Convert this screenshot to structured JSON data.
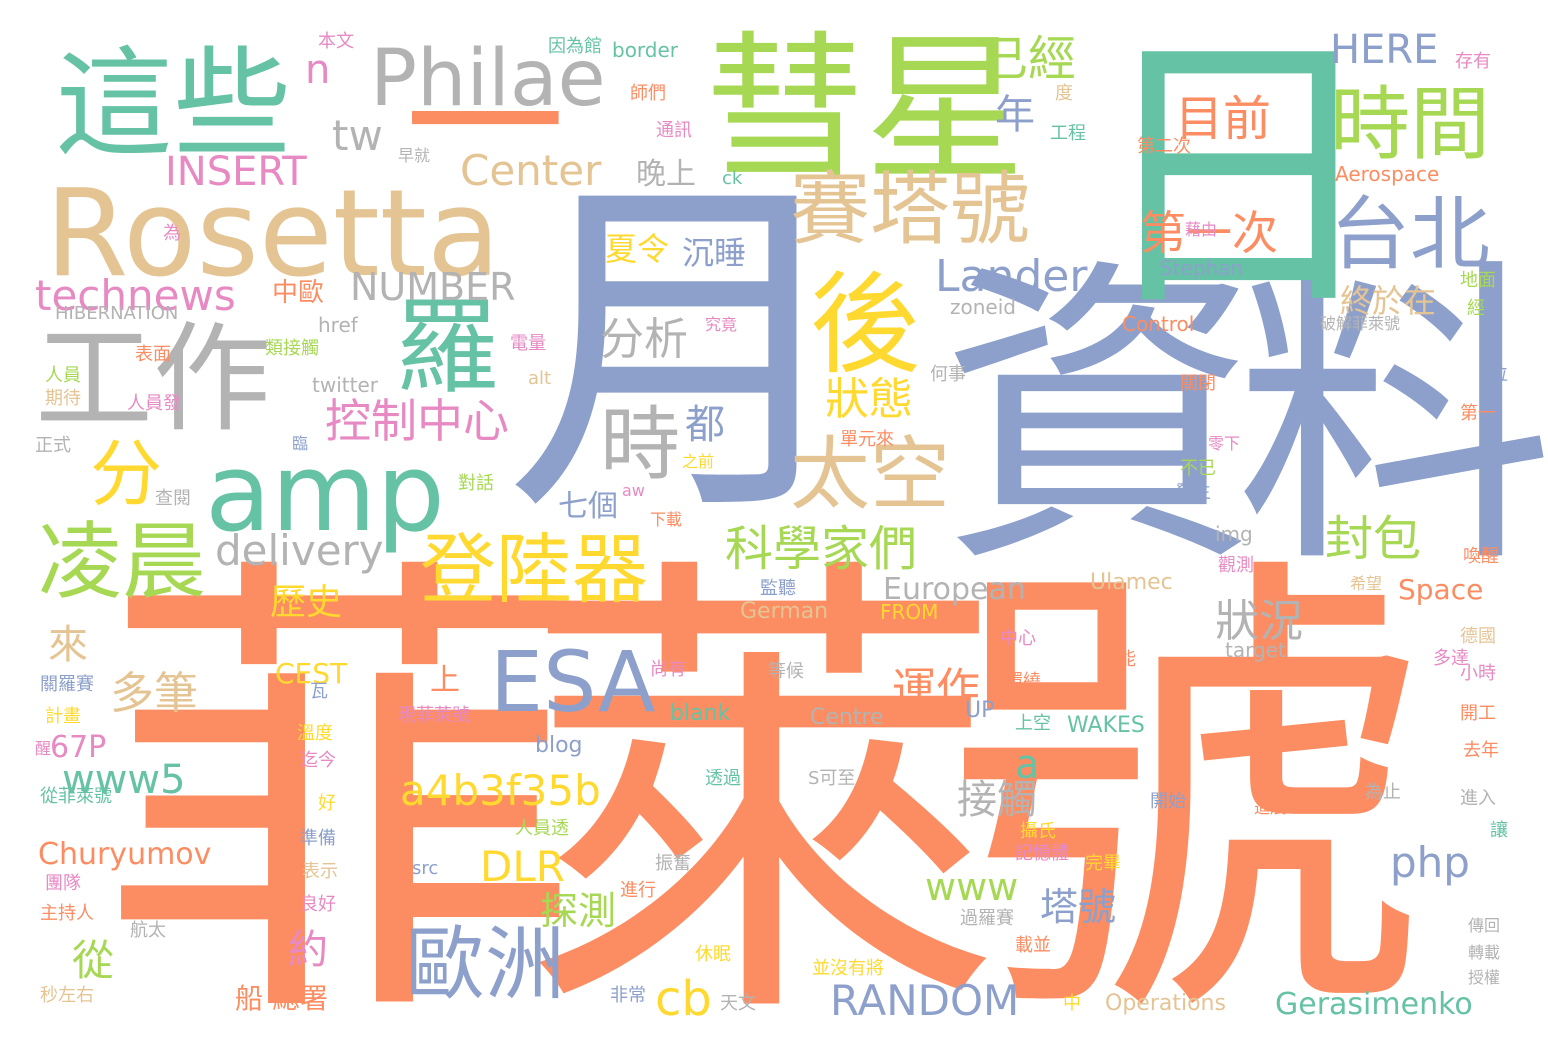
{
  "colors": {
    "orange": "#fc8d62",
    "blue": "#8da0cb",
    "teal": "#66c2a5",
    "green": "#a6d854",
    "yellow": "#ffd92f",
    "tan": "#e5c494",
    "pink": "#e78ac3",
    "gray": "#b3b3b3"
  },
  "words": [
    {
      "id": "w1",
      "text": "菲萊號",
      "color": "orange"
    },
    {
      "id": "w2",
      "text": "資料",
      "color": "blue"
    },
    {
      "id": "w3",
      "text": "月",
      "color": "blue"
    },
    {
      "id": "w4",
      "text": "日",
      "color": "teal"
    },
    {
      "id": "w5",
      "text": "彗星",
      "color": "green"
    },
    {
      "id": "w6",
      "text": "Rosetta",
      "color": "tan"
    },
    {
      "id": "w7",
      "text": "這些",
      "color": "teal"
    },
    {
      "id": "w8",
      "text": "Philae",
      "color": "gray"
    },
    {
      "id": "w9",
      "text": "一",
      "color": "orange"
    },
    {
      "id": "w10",
      "text": "工作",
      "color": "gray"
    },
    {
      "id": "w11",
      "text": "amp",
      "color": "teal"
    },
    {
      "id": "w12",
      "text": "時間",
      "color": "green"
    },
    {
      "id": "w13",
      "text": "賽塔號",
      "color": "tan"
    },
    {
      "id": "w14",
      "text": "台北",
      "color": "blue"
    },
    {
      "id": "w15",
      "text": "後",
      "color": "yellow"
    },
    {
      "id": "w16",
      "text": "羅",
      "color": "teal"
    },
    {
      "id": "w17",
      "text": "登陸器",
      "color": "yellow"
    },
    {
      "id": "w18",
      "text": "ESA",
      "color": "blue"
    },
    {
      "id": "w19",
      "text": "歐洲",
      "color": "blue"
    },
    {
      "id": "w20",
      "text": "凌晨",
      "color": "green"
    },
    {
      "id": "w21",
      "text": "太空",
      "color": "tan"
    },
    {
      "id": "w22",
      "text": "分",
      "color": "yellow"
    },
    {
      "id": "w23",
      "text": "時",
      "color": "gray"
    },
    {
      "id": "w24",
      "text": "已經",
      "color": "green"
    },
    {
      "id": "w25",
      "text": "目前",
      "color": "orange"
    },
    {
      "id": "w26",
      "text": "第一次",
      "color": "orange"
    },
    {
      "id": "w27",
      "text": "Lander",
      "color": "blue"
    },
    {
      "id": "w28",
      "text": "控制中心",
      "color": "pink"
    },
    {
      "id": "w29",
      "text": "科學家們",
      "color": "green"
    },
    {
      "id": "w30",
      "text": "a4b3f35b",
      "color": "yellow"
    },
    {
      "id": "w31",
      "text": "Center",
      "color": "tan"
    },
    {
      "id": "w32",
      "text": "INSERT",
      "color": "pink"
    },
    {
      "id": "w33",
      "text": "technews",
      "color": "pink"
    },
    {
      "id": "w34",
      "text": "NUMBER",
      "color": "gray"
    },
    {
      "id": "w35",
      "text": "delivery",
      "color": "gray"
    },
    {
      "id": "w36",
      "text": "RANDOM",
      "color": "blue"
    },
    {
      "id": "w37",
      "text": "www5",
      "color": "teal"
    },
    {
      "id": "w38",
      "text": "Churyumov",
      "color": "orange"
    },
    {
      "id": "w39",
      "text": "Gerasimenko",
      "color": "teal"
    },
    {
      "id": "w40",
      "text": "DLR",
      "color": "yellow"
    },
    {
      "id": "w41",
      "text": "php",
      "color": "blue"
    },
    {
      "id": "w42",
      "text": "www",
      "color": "green"
    },
    {
      "id": "w43",
      "text": "cb",
      "color": "yellow"
    },
    {
      "id": "w44",
      "text": "HERE",
      "color": "blue"
    },
    {
      "id": "w45",
      "text": "tw",
      "color": "gray"
    },
    {
      "id": "w46",
      "text": "n",
      "color": "pink"
    },
    {
      "id": "w47",
      "text": "分析",
      "color": "gray"
    },
    {
      "id": "w48",
      "text": "狀態",
      "color": "yellow"
    },
    {
      "id": "w49",
      "text": "封包",
      "color": "green"
    },
    {
      "id": "w50",
      "text": "終於在",
      "color": "tan"
    },
    {
      "id": "w51",
      "text": "多筆",
      "color": "tan"
    },
    {
      "id": "w52",
      "text": "運作",
      "color": "orange"
    },
    {
      "id": "w53",
      "text": "狀況",
      "color": "gray"
    },
    {
      "id": "w54",
      "text": "接觸",
      "color": "gray"
    },
    {
      "id": "w55",
      "text": "塔號",
      "color": "blue"
    },
    {
      "id": "w56",
      "text": "探測",
      "color": "green"
    },
    {
      "id": "w57",
      "text": "歷史",
      "color": "yellow"
    },
    {
      "id": "w58",
      "text": "European",
      "color": "gray"
    },
    {
      "id": "w59",
      "text": "Space",
      "color": "orange"
    },
    {
      "id": "w60",
      "text": "年",
      "color": "blue"
    },
    {
      "id": "w61",
      "text": "都",
      "color": "blue"
    },
    {
      "id": "w62",
      "text": "來",
      "color": "tan"
    },
    {
      "id": "w63",
      "text": "從",
      "color": "green"
    },
    {
      "id": "w64",
      "text": "約",
      "color": "pink"
    },
    {
      "id": "w65",
      "text": "a",
      "color": "teal"
    },
    {
      "id": "w66",
      "text": "夏令",
      "color": "yellow"
    },
    {
      "id": "w67",
      "text": "沉睡",
      "color": "blue"
    },
    {
      "id": "w68",
      "text": "晚上",
      "color": "gray"
    },
    {
      "id": "w69",
      "text": "七個",
      "color": "blue"
    },
    {
      "id": "w70",
      "text": "中歐",
      "color": "orange"
    },
    {
      "id": "w71",
      "text": "上",
      "color": "orange"
    },
    {
      "id": "w72",
      "text": "67P",
      "color": "pink"
    },
    {
      "id": "w73",
      "text": "CEST",
      "color": "yellow"
    },
    {
      "id": "w74",
      "text": "船",
      "color": "orange"
    },
    {
      "id": "w75",
      "text": "總署",
      "color": "orange"
    },
    {
      "id": "w76",
      "text": "blog",
      "color": "blue"
    },
    {
      "id": "w77",
      "text": "blank",
      "color": "teal"
    },
    {
      "id": "w78",
      "text": "Centre",
      "color": "gray"
    },
    {
      "id": "w79",
      "text": "UP",
      "color": "blue"
    },
    {
      "id": "w80",
      "text": "WAKES",
      "color": "teal"
    },
    {
      "id": "w81",
      "text": "Operations",
      "color": "tan"
    },
    {
      "id": "w82",
      "text": "German",
      "color": "tan"
    },
    {
      "id": "w83",
      "text": "FROM",
      "color": "yellow"
    },
    {
      "id": "w84",
      "text": "Ulamec",
      "color": "tan"
    },
    {
      "id": "w85",
      "text": "img",
      "color": "gray"
    },
    {
      "id": "w86",
      "text": "target",
      "color": "gray"
    },
    {
      "id": "w87",
      "text": "zoneid",
      "color": "gray"
    },
    {
      "id": "w88",
      "text": "Control",
      "color": "orange"
    },
    {
      "id": "w89",
      "text": "Stephan",
      "color": "blue"
    },
    {
      "id": "w90",
      "text": "Aerospace",
      "color": "orange"
    },
    {
      "id": "w91",
      "text": "border",
      "color": "teal"
    },
    {
      "id": "w92",
      "text": "href",
      "color": "gray"
    },
    {
      "id": "w93",
      "text": "twitter",
      "color": "gray"
    },
    {
      "id": "w94",
      "text": "alt",
      "color": "tan"
    },
    {
      "id": "w95",
      "text": "HIBERNATION",
      "color": "gray"
    },
    {
      "id": "w96",
      "text": "src",
      "color": "blue"
    },
    {
      "id": "w97",
      "text": "ck",
      "color": "teal"
    },
    {
      "id": "w98",
      "text": "aw",
      "color": "pink"
    },
    {
      "id": "w99",
      "text": "本文",
      "color": "pink"
    },
    {
      "id": "w100",
      "text": "因為館",
      "color": "teal"
    },
    {
      "id": "w101",
      "text": "師們",
      "color": "orange"
    },
    {
      "id": "w102",
      "text": "度",
      "color": "tan"
    },
    {
      "id": "w103",
      "text": "工程",
      "color": "teal"
    },
    {
      "id": "w104",
      "text": "通訊",
      "color": "pink"
    },
    {
      "id": "w105",
      "text": "早就",
      "color": "gray"
    },
    {
      "id": "w106",
      "text": "第二次",
      "color": "orange"
    },
    {
      "id": "w107",
      "text": "存有",
      "color": "pink"
    },
    {
      "id": "w108",
      "text": "為",
      "color": "pink"
    },
    {
      "id": "w109",
      "text": "藉由",
      "color": "pink"
    },
    {
      "id": "w110",
      "text": "地面",
      "color": "green"
    },
    {
      "id": "w111",
      "text": "經",
      "color": "green"
    },
    {
      "id": "w112",
      "text": "破解菲萊號",
      "color": "gray"
    },
    {
      "id": "w113",
      "text": "表面",
      "color": "orange"
    },
    {
      "id": "w114",
      "text": "類接觸",
      "color": "green"
    },
    {
      "id": "w115",
      "text": "電量",
      "color": "pink"
    },
    {
      "id": "w116",
      "text": "究竟",
      "color": "pink"
    },
    {
      "id": "w117",
      "text": "何事",
      "color": "gray"
    },
    {
      "id": "w118",
      "text": "關閉",
      "color": "orange"
    },
    {
      "id": "w119",
      "text": "位",
      "color": "blue"
    },
    {
      "id": "w120",
      "text": "人員",
      "color": "green"
    },
    {
      "id": "w121",
      "text": "期待",
      "color": "tan"
    },
    {
      "id": "w122",
      "text": "人員發",
      "color": "pink"
    },
    {
      "id": "w123",
      "text": "正式",
      "color": "gray"
    },
    {
      "id": "w124",
      "text": "臨",
      "color": "blue"
    },
    {
      "id": "w125",
      "text": "單元來",
      "color": "orange"
    },
    {
      "id": "w126",
      "text": "第一",
      "color": "orange"
    },
    {
      "id": "w127",
      "text": "零下",
      "color": "pink"
    },
    {
      "id": "w128",
      "text": "不已",
      "color": "green"
    },
    {
      "id": "w129",
      "text": "之前",
      "color": "yellow"
    },
    {
      "id": "w130",
      "text": "發生",
      "color": "blue"
    },
    {
      "id": "w131",
      "text": "對話",
      "color": "green"
    },
    {
      "id": "w132",
      "text": "查閱",
      "color": "gray"
    },
    {
      "id": "w133",
      "text": "下載",
      "color": "orange"
    },
    {
      "id": "w134",
      "text": "喚醒",
      "color": "orange"
    },
    {
      "id": "w135",
      "text": "觀測",
      "color": "pink"
    },
    {
      "id": "w136",
      "text": "希望",
      "color": "tan"
    },
    {
      "id": "w137",
      "text": "監聽",
      "color": "blue"
    },
    {
      "id": "w138",
      "text": "德國",
      "color": "tan"
    },
    {
      "id": "w139",
      "text": "中心",
      "color": "pink"
    },
    {
      "id": "w140",
      "text": "多達",
      "color": "pink"
    },
    {
      "id": "w141",
      "text": "小時",
      "color": "pink"
    },
    {
      "id": "w142",
      "text": "可能",
      "color": "orange"
    },
    {
      "id": "w143",
      "text": "尚有",
      "color": "pink"
    },
    {
      "id": "w144",
      "text": "等候",
      "color": "gray"
    },
    {
      "id": "w145",
      "text": "環繞",
      "color": "orange"
    },
    {
      "id": "w146",
      "text": "開工",
      "color": "orange"
    },
    {
      "id": "w147",
      "text": "關羅賽",
      "color": "blue"
    },
    {
      "id": "w148",
      "text": "瓦",
      "color": "blue"
    },
    {
      "id": "w149",
      "text": "現菲萊號",
      "color": "pink"
    },
    {
      "id": "w150",
      "text": "上空",
      "color": "teal"
    },
    {
      "id": "w151",
      "text": "計畫",
      "color": "yellow"
    },
    {
      "id": "w152",
      "text": "溫度",
      "color": "yellow"
    },
    {
      "id": "w153",
      "text": "去年",
      "color": "orange"
    },
    {
      "id": "w154",
      "text": "醒",
      "color": "pink"
    },
    {
      "id": "w155",
      "text": "迄今",
      "color": "pink"
    },
    {
      "id": "w156",
      "text": "透過",
      "color": "teal"
    },
    {
      "id": "w157",
      "text": "S可至",
      "color": "gray"
    },
    {
      "id": "w158",
      "text": "進入",
      "color": "gray"
    },
    {
      "id": "w159",
      "text": "從菲萊號",
      "color": "teal"
    },
    {
      "id": "w160",
      "text": "好",
      "color": "yellow"
    },
    {
      "id": "w161",
      "text": "開始",
      "color": "blue"
    },
    {
      "id": "w162",
      "text": "為止",
      "color": "gray"
    },
    {
      "id": "w163",
      "text": "進展",
      "color": "orange"
    },
    {
      "id": "w164",
      "text": "讓",
      "color": "teal"
    },
    {
      "id": "w165",
      "text": "人員透",
      "color": "green"
    },
    {
      "id": "w166",
      "text": "準備",
      "color": "blue"
    },
    {
      "id": "w167",
      "text": "攝氏",
      "color": "yellow"
    },
    {
      "id": "w168",
      "text": "記憶體",
      "color": "pink"
    },
    {
      "id": "w169",
      "text": "完畢",
      "color": "yellow"
    },
    {
      "id": "w170",
      "text": "振奮",
      "color": "gray"
    },
    {
      "id": "w171",
      "text": "表示",
      "color": "tan"
    },
    {
      "id": "w172",
      "text": "團隊",
      "color": "pink"
    },
    {
      "id": "w173",
      "text": "進行",
      "color": "orange"
    },
    {
      "id": "w174",
      "text": "主持人",
      "color": "orange"
    },
    {
      "id": "w175",
      "text": "良好",
      "color": "pink"
    },
    {
      "id": "w176",
      "text": "過羅賽",
      "color": "gray"
    },
    {
      "id": "w177",
      "text": "航太",
      "color": "gray"
    },
    {
      "id": "w178",
      "text": "休眠",
      "color": "yellow"
    },
    {
      "id": "w179",
      "text": "載並",
      "color": "orange"
    },
    {
      "id": "w180",
      "text": "傳回",
      "color": "gray"
    },
    {
      "id": "w181",
      "text": "轉載",
      "color": "gray"
    },
    {
      "id": "w182",
      "text": "並沒有將",
      "color": "yellow"
    },
    {
      "id": "w183",
      "text": "授權",
      "color": "gray"
    },
    {
      "id": "w184",
      "text": "秒左右",
      "color": "tan"
    },
    {
      "id": "w185",
      "text": "非常",
      "color": "blue"
    },
    {
      "id": "w186",
      "text": "天文",
      "color": "gray"
    },
    {
      "id": "w187",
      "text": "中",
      "color": "yellow"
    }
  ]
}
